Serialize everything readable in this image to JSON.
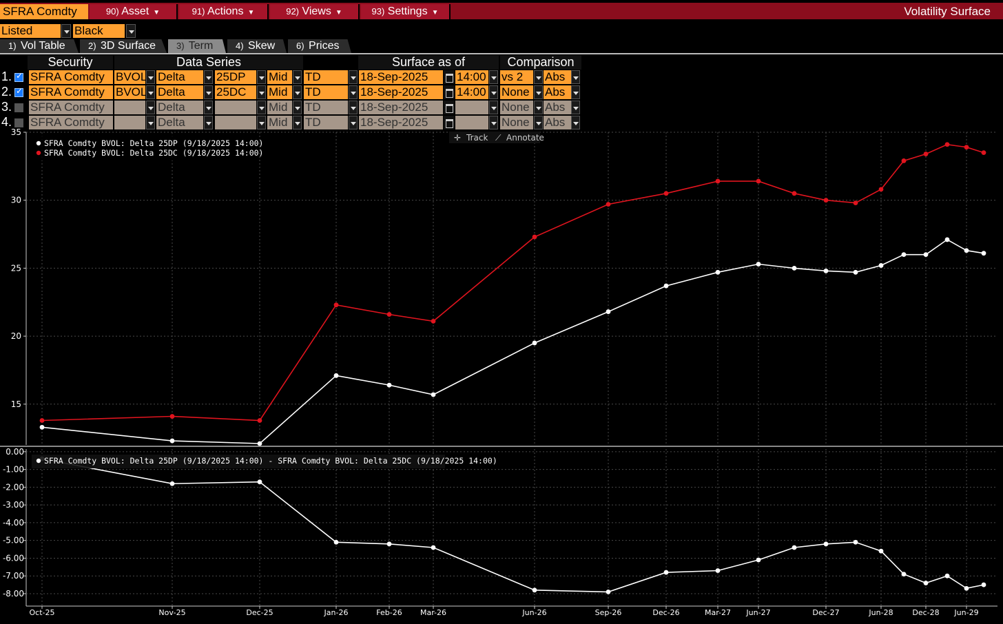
{
  "header": {
    "security": "SFRA Comdty",
    "menus": [
      {
        "num": "90)",
        "label": "Asset"
      },
      {
        "num": "91)",
        "label": "Actions"
      },
      {
        "num": "92)",
        "label": "Views"
      },
      {
        "num": "93)",
        "label": "Settings"
      }
    ],
    "title": "Volatility Surface"
  },
  "options": {
    "listed": "Listed",
    "model": "Black"
  },
  "tabs": [
    {
      "num": "1)",
      "label": "Vol Table"
    },
    {
      "num": "2)",
      "label": "3D Surface"
    },
    {
      "num": "3)",
      "label": "Term",
      "active": true
    },
    {
      "num": "4)",
      "label": "Skew"
    },
    {
      "num": "6)",
      "label": "Prices"
    }
  ],
  "table": {
    "columns": {
      "security": "Security",
      "data_series": "Data Series",
      "surface_as_of": "Surface as of",
      "comparison": "Comparison"
    },
    "rows": [
      {
        "num": "1.",
        "checked": true,
        "security": "SFRA Comdty",
        "source": "BVOL",
        "type": "Delta",
        "point": "25DP",
        "side": "Mid",
        "rel": "TD",
        "date": "18-Sep-2025",
        "time": "14:00",
        "compare": "vs 2",
        "mode": "Abs"
      },
      {
        "num": "2.",
        "checked": true,
        "security": "SFRA Comdty",
        "source": "BVOL",
        "type": "Delta",
        "point": "25DC",
        "side": "Mid",
        "rel": "TD",
        "date": "18-Sep-2025",
        "time": "14:00",
        "compare": "None",
        "mode": "Abs"
      },
      {
        "num": "3.",
        "checked": false,
        "security": "SFRA Comdty",
        "source": "",
        "type": "Delta",
        "point": "",
        "side": "Mid",
        "rel": "TD",
        "date": "18-Sep-2025",
        "time": "",
        "compare": "None",
        "mode": "Abs"
      },
      {
        "num": "4.",
        "checked": false,
        "security": "SFRA Comdty",
        "source": "",
        "type": "Delta",
        "point": "",
        "side": "Mid",
        "rel": "TD",
        "date": "18-Sep-2025",
        "time": "",
        "compare": "None",
        "mode": "Abs"
      }
    ]
  },
  "toolbar": {
    "track": "Track",
    "annotate": "Annotate"
  },
  "colors": {
    "series_put": "#ffffff",
    "series_call": "#e0141e",
    "orange": "#ffa030",
    "header_red": "#8b0d1d"
  },
  "chart_data": [
    {
      "type": "line",
      "grid": true,
      "legend_placement": "top-left",
      "ylim": [
        12,
        35
      ],
      "yticks": [
        15,
        20,
        25,
        30,
        35
      ],
      "series": [
        {
          "name": "SFRA Comdty BVOL: Delta 25DP (9/18/2025 14:00)",
          "color": "#ffffff",
          "values": [
            13.3,
            12.3,
            12.1,
            17.1,
            16.4,
            15.7,
            19.5,
            21.8,
            23.7,
            24.7,
            25.3,
            25.0,
            24.8,
            24.7,
            25.2,
            26.0,
            26.0,
            27.1,
            26.3,
            26.1
          ]
        },
        {
          "name": "SFRA Comdty BVOL: Delta 25DC (9/18/2025 14:00)",
          "color": "#e0141e",
          "values": [
            13.8,
            14.1,
            13.8,
            22.3,
            21.6,
            21.1,
            27.3,
            29.7,
            30.5,
            31.4,
            31.4,
            30.5,
            30.0,
            29.8,
            30.8,
            32.9,
            33.4,
            34.1,
            33.9,
            33.5
          ]
        }
      ]
    },
    {
      "type": "line",
      "grid": true,
      "legend_placement": "top-left",
      "ylim": [
        -8.7,
        0.15
      ],
      "yticks": [
        "0.00",
        "-1.00",
        "-2.00",
        "-3.00",
        "-4.00",
        "-5.00",
        "-6.00",
        "-7.00",
        "-8.00"
      ],
      "series": [
        {
          "name": "SFRA Comdty BVOL: Delta 25DP (9/18/2025 14:00) - SFRA Comdty BVOL: Delta 25DC (9/18/2025 14:00)",
          "color": "#ffffff",
          "values": [
            -0.4,
            -1.8,
            -1.7,
            -5.1,
            -5.2,
            -5.4,
            -7.8,
            -7.9,
            -6.8,
            -6.7,
            -6.1,
            -5.4,
            -5.2,
            -5.1,
            -5.6,
            -6.9,
            -7.4,
            -7.0,
            -7.7,
            -7.5
          ]
        }
      ]
    }
  ],
  "x_axis": {
    "tick_labels": [
      "Oct-25",
      "Nov-25",
      "Dec-25",
      "Jan-26",
      "Feb-26",
      "Mar-26",
      "Jun-26",
      "Sep-26",
      "Dec-26",
      "Mar-27",
      "Jun-27",
      "Dec-27",
      "Jun-28",
      "Dec-28",
      "Jun-29"
    ]
  }
}
